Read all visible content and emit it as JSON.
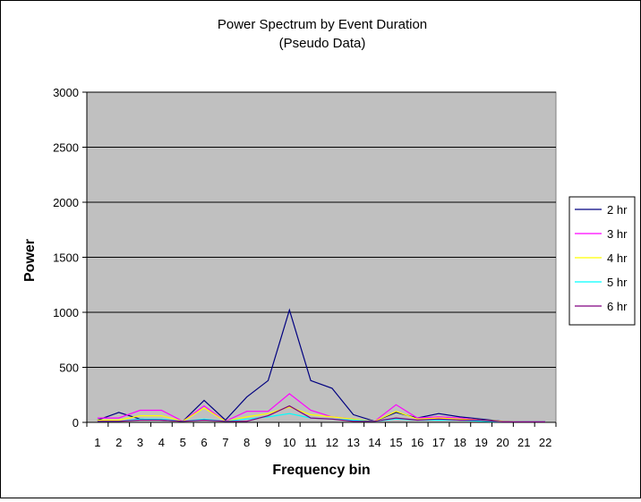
{
  "chart_data": {
    "type": "line",
    "title": "Power Spectrum by Event Duration",
    "subtitle": "(Pseudo Data)",
    "xlabel": "Frequency bin",
    "ylabel": "Power",
    "ylim": [
      0,
      3000
    ],
    "yticks": [
      "0",
      "500",
      "1000",
      "1500",
      "2000",
      "2500",
      "3000"
    ],
    "grid": "horizontal",
    "legend_position": "right",
    "plot_background": "#c0c0c0",
    "categories": [
      "1",
      "2",
      "3",
      "4",
      "5",
      "6",
      "7",
      "8",
      "9",
      "10",
      "11",
      "12",
      "13",
      "14",
      "15",
      "16",
      "17",
      "18",
      "19",
      "20",
      "21",
      "22"
    ],
    "series": [
      {
        "name": "2 hr",
        "color": "#000080",
        "values": [
          20,
          90,
          30,
          20,
          10,
          200,
          20,
          230,
          380,
          1020,
          380,
          310,
          70,
          10,
          90,
          40,
          80,
          50,
          30,
          10,
          5,
          5
        ]
      },
      {
        "name": "3 hr",
        "color": "#ff00ff",
        "values": [
          40,
          40,
          110,
          110,
          10,
          150,
          10,
          100,
          100,
          260,
          110,
          50,
          30,
          10,
          160,
          40,
          50,
          40,
          20,
          10,
          5,
          5
        ]
      },
      {
        "name": "4 hr",
        "color": "#ffff00",
        "values": [
          20,
          20,
          60,
          60,
          10,
          130,
          10,
          50,
          80,
          140,
          70,
          50,
          30,
          10,
          100,
          30,
          40,
          30,
          20,
          10,
          5,
          5
        ]
      },
      {
        "name": "5 hr",
        "color": "#00ffff",
        "values": [
          10,
          10,
          30,
          30,
          10,
          30,
          10,
          30,
          50,
          80,
          40,
          30,
          20,
          10,
          30,
          20,
          20,
          20,
          10,
          5,
          5,
          5
        ]
      },
      {
        "name": "6 hr",
        "color": "#800080",
        "values": [
          10,
          10,
          20,
          20,
          10,
          20,
          10,
          10,
          60,
          150,
          40,
          30,
          10,
          10,
          40,
          20,
          30,
          20,
          20,
          5,
          5,
          5
        ]
      }
    ]
  }
}
